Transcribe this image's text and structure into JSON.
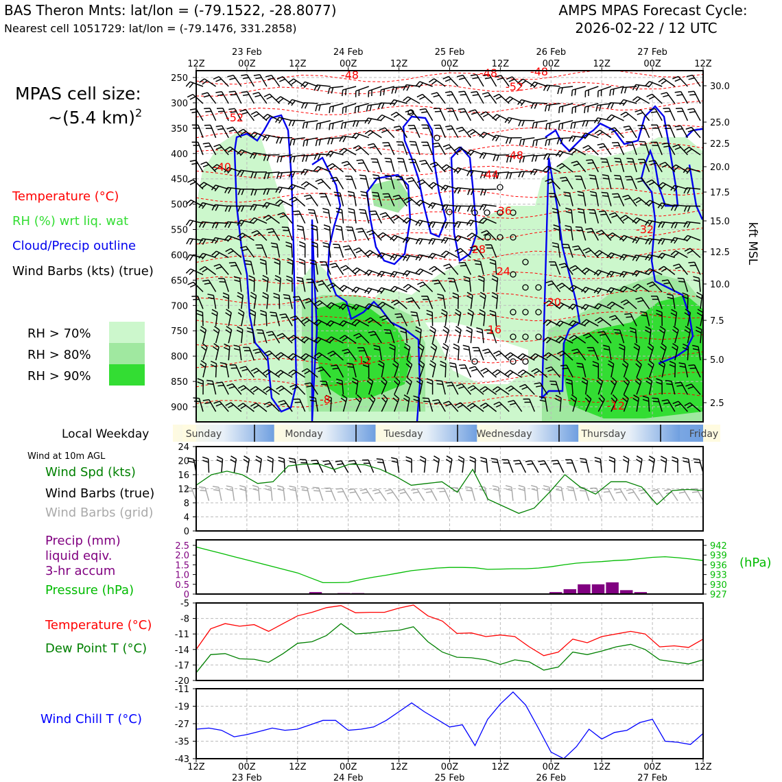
{
  "header": {
    "title_left": "BAS Theron Mnts: lat/lon = (-79.1522, -28.8077)",
    "subtitle_left": "Nearest cell 1051729: lat/lon = (-79.1476, 331.2858)",
    "title_right_1": "AMPS MPAS Forecast Cycle:",
    "title_right_2": "2026-02-22 / 12 UTC"
  },
  "side": {
    "cell_size_1": "MPAS cell size:",
    "cell_size_2": "~(5.4 km)",
    "cell_size_sup": "2",
    "leg_temp": "Temperature (°C)",
    "leg_rh": "RH (%) wrt liq. wat",
    "leg_cloud": "Cloud/Precip outline",
    "leg_barbs": "Wind Barbs (kts) (true)",
    "rh70": "RH > 70%",
    "rh80": "RH > 80%",
    "rh90": "RH > 90%",
    "local_weekday": "Local Weekday",
    "wind10": "Wind at 10m AGL",
    "ws_label": "Wind Spd (kts)",
    "wb_true": "Wind Barbs (true)",
    "wb_grid": "Wind Barbs (grid)",
    "precip_1": "Precip (mm)",
    "precip_2": "liquid eqiv.",
    "precip_3": "3-hr accum",
    "pres_label": "Pressure (hPa)",
    "temp_label": "Temperature (°C)",
    "dew_label": "Dew Point T (°C)",
    "wc_label": "Wind Chill T (°C)",
    "hpa_unit": "(hPa)",
    "kft_label": "kft MSL"
  },
  "colors": {
    "temp": "#ff0000",
    "dew": "#008000",
    "pressure": "#00bb00",
    "precip": "#800080",
    "cloud": "#0000ee",
    "windchill": "#0000ff",
    "rh70": "#ccf7cc",
    "rh80": "#a0e8a0",
    "rh90": "#33dd33",
    "barb_grid": "#aaaaaa"
  },
  "chart_data": [
    {
      "type": "time-height",
      "x_tick_labels": [
        "12Z",
        "00Z",
        "12Z",
        "00Z",
        "12Z",
        "00Z",
        "12Z",
        "00Z",
        "12Z",
        "00Z",
        "12Z"
      ],
      "x_date_labels": [
        "23 Feb",
        "24 Feb",
        "25 Feb",
        "26 Feb",
        "27 Feb"
      ],
      "y_pressure_ticks": [
        "250",
        "300",
        "350",
        "400",
        "450",
        "500",
        "550",
        "600",
        "650",
        "700",
        "750",
        "800",
        "850",
        "900"
      ],
      "y_kft_ticks": [
        "30.0",
        "25.0",
        "22.5",
        "20.0",
        "17.5",
        "15.0",
        "12.5",
        "10.0",
        "7.5",
        "5.0",
        "2.5"
      ],
      "ylabel_right": "kft MSL",
      "temperature_contour_labels": [
        "-48",
        "-48",
        "-48",
        "-52",
        "-52",
        "-48",
        "-40",
        "-44",
        "-36",
        "-32",
        "-28",
        "-24",
        "-20",
        "-16",
        "-12",
        "-12",
        "-8"
      ],
      "weekdays": [
        "Sunday",
        "Monday",
        "Tuesday",
        "Wednesday",
        "Thursday",
        "Friday"
      ]
    },
    {
      "type": "line",
      "name": "wind_speed",
      "ylim": [
        0,
        24
      ],
      "y_ticks": [
        "0",
        "4",
        "8",
        "12",
        "16",
        "20",
        "24"
      ],
      "values": [
        13,
        16,
        17,
        16,
        13.5,
        14,
        18.5,
        19,
        19,
        17.5,
        19,
        18.8,
        17.5,
        15.5,
        13,
        13.5,
        14,
        11,
        17.5,
        9,
        7,
        5,
        6.5,
        11,
        16,
        12.5,
        10.5,
        14,
        14,
        12.5,
        7.5,
        11.5,
        11.8,
        11.5
      ]
    },
    {
      "type": "line+bar",
      "name": "precip_pressure",
      "precip_ylim": [
        0,
        2.5
      ],
      "precip_ticks": [
        "0",
        "0.5",
        "1.0",
        "1.5",
        "2.0",
        "2.5"
      ],
      "pressure_ylim": [
        927,
        942
      ],
      "pressure_ticks": [
        "927",
        "930",
        "933",
        "936",
        "939",
        "942"
      ],
      "pressure_values": [
        941.5,
        940.5,
        939.5,
        938.5,
        937.5,
        936.5,
        935.5,
        934.5,
        933.5,
        932,
        930.5,
        930.5,
        930.6,
        931.5,
        932.2,
        932.8,
        933.5,
        934.2,
        934.6,
        935,
        935.2,
        935.2,
        935.1,
        934.6,
        934.7,
        934.8,
        934.8,
        935,
        935.4,
        936,
        936.5,
        936.8,
        937,
        937.3,
        937.5,
        937.9,
        938.3,
        938.5,
        938.2,
        937.8,
        937.3
      ],
      "precip_bars": [
        [
          8,
          0.1
        ],
        [
          10,
          0.05
        ],
        [
          11,
          0.05
        ],
        [
          25,
          0.1
        ],
        [
          26,
          0.25
        ],
        [
          27,
          0.5
        ],
        [
          28,
          0.5
        ],
        [
          29,
          0.6
        ],
        [
          30,
          0.2
        ],
        [
          31,
          0.1
        ]
      ]
    },
    {
      "type": "line",
      "name": "temperature_dewpoint",
      "ylim": [
        -20,
        -5
      ],
      "y_ticks": [
        "-20",
        "-17",
        "-14",
        "-11",
        "-8",
        "-5"
      ],
      "temperature": [
        -14,
        -10,
        -9,
        -9.5,
        -9.2,
        -10.5,
        -9,
        -7.5,
        -6.8,
        -5.9,
        -5.5,
        -6.9,
        -6.8,
        -6.8,
        -6,
        -5.4,
        -7.5,
        -8.5,
        -10.9,
        -10.8,
        -11.5,
        -11.2,
        -11.5,
        -13.5,
        -15.2,
        -14.5,
        -12,
        -12.7,
        -11.5,
        -11,
        -10.5,
        -11,
        -13.5,
        -13.3,
        -13.6,
        -12
      ]
    },
    {
      "type": "line",
      "name": "dew_point",
      "values": [
        -18.5,
        -15,
        -14.8,
        -15.8,
        -15.9,
        -16.5,
        -14.8,
        -12.8,
        -12.5,
        -11.3,
        -9,
        -11,
        -10.8,
        -10.5,
        -10.3,
        -9.6,
        -12.5,
        -14.5,
        -15.5,
        -15.6,
        -16,
        -16.9,
        -16,
        -16.4,
        -18,
        -17.4,
        -14.5,
        -15,
        -14.3,
        -13.5,
        -13,
        -14,
        -16,
        -16.4,
        -16.8,
        -16
      ]
    },
    {
      "type": "line",
      "name": "wind_chill",
      "ylim": [
        -43,
        -11
      ],
      "y_ticks": [
        "-43",
        "-35",
        "-27",
        "-19",
        "-11"
      ],
      "values": [
        -29.5,
        -29,
        -30,
        -33,
        -32,
        -30.5,
        -29,
        -30,
        -29.5,
        -27.5,
        -25.5,
        -25.5,
        -30,
        -29.5,
        -28.5,
        -25.5,
        -21.5,
        -17.5,
        -21.5,
        -25,
        -28.5,
        -27.5,
        -37,
        -25,
        -18,
        -12.5,
        -18.5,
        -29,
        -40,
        -43,
        -37.5,
        -29.5,
        -34,
        -31,
        -30,
        -26.5,
        -25,
        -35,
        -35.5,
        -36.5,
        -31.5
      ]
    }
  ]
}
